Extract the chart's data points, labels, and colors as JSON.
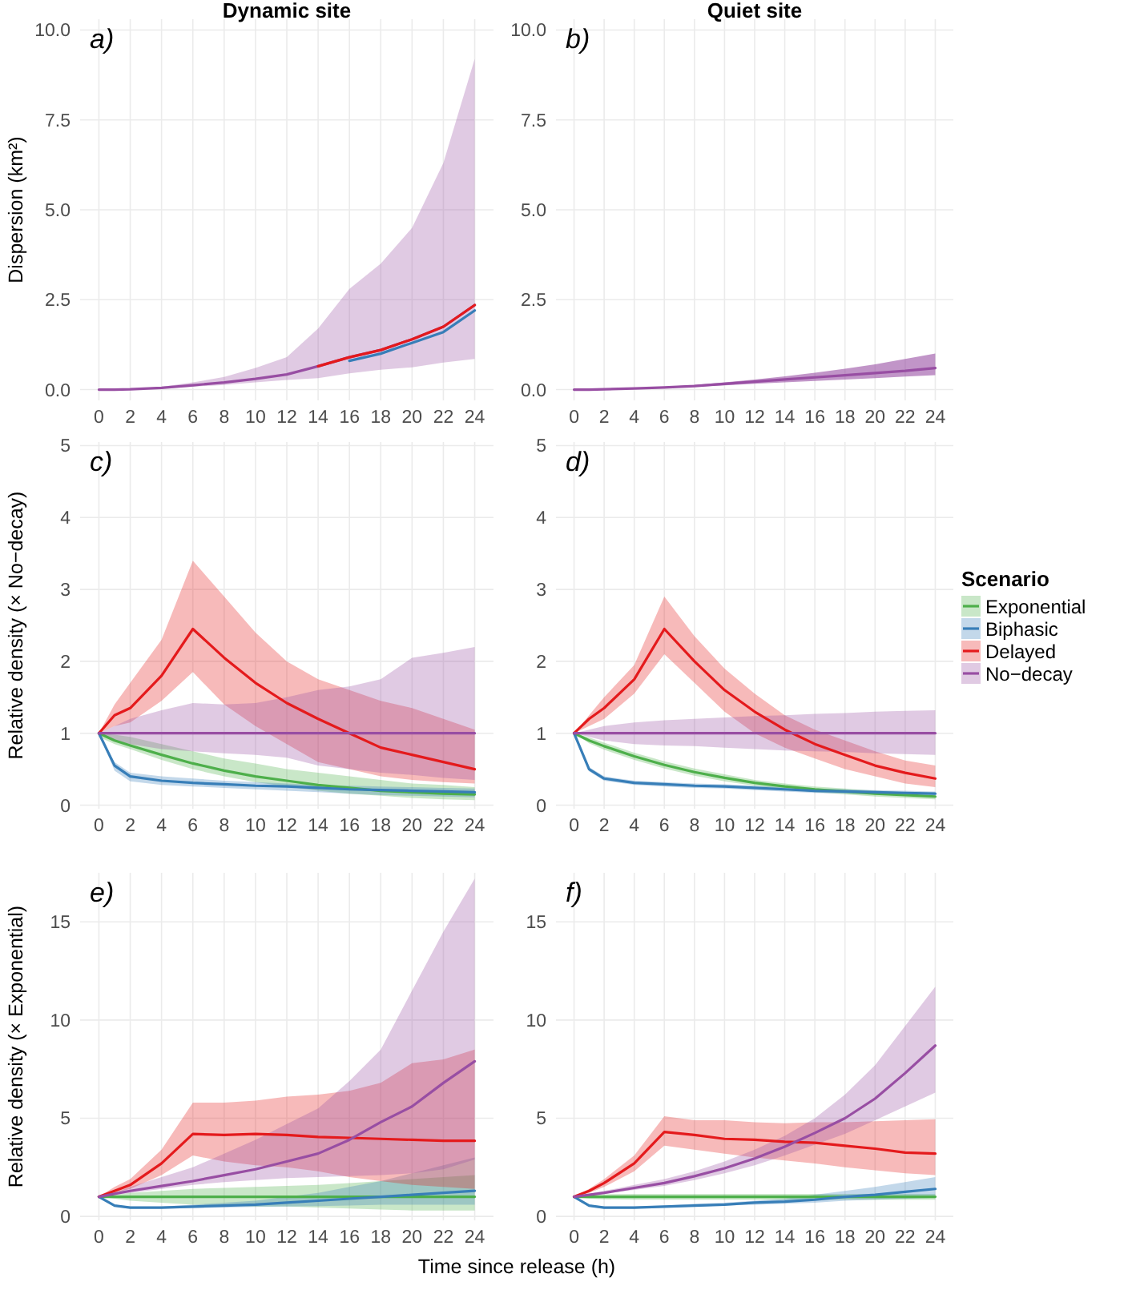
{
  "chart_data": [
    {
      "type": "line",
      "title": "Dynamic site",
      "ylabel": "Dispersion (km²)",
      "annotations": [
        "a)"
      ],
      "grid": true,
      "line_style": "solid",
      "x": [
        0,
        1,
        2,
        4,
        6,
        8,
        10,
        12,
        14,
        16,
        18,
        20,
        22,
        24
      ],
      "xlim": [
        -1.2,
        25.2
      ],
      "xticks": [
        0,
        2,
        4,
        6,
        8,
        10,
        12,
        14,
        16,
        18,
        20,
        22,
        24
      ],
      "ylim": [
        -0.3,
        10.3
      ],
      "yticks": [
        {
          "value": 0,
          "label": "0.0"
        },
        {
          "value": 2.5,
          "label": "2.5"
        },
        {
          "value": 5,
          "label": "5.0"
        },
        {
          "value": 7.5,
          "label": "7.5"
        },
        {
          "value": 10,
          "label": "10.0"
        }
      ],
      "series": [
        {
          "color": "#984ea3",
          "values": [
            0,
            0,
            0.01,
            0.05,
            0.12,
            0.2,
            0.3,
            0.42,
            0.65,
            0.9,
            1.1,
            1.4,
            1.75,
            2.35
          ],
          "lower": [
            0,
            0,
            0.01,
            0.03,
            0.08,
            0.13,
            0.2,
            0.27,
            0.32,
            0.45,
            0.55,
            0.62,
            0.75,
            0.85
          ],
          "upper": [
            0,
            0,
            0.02,
            0.08,
            0.2,
            0.35,
            0.6,
            0.9,
            1.7,
            2.8,
            3.5,
            4.5,
            6.3,
            9.2
          ]
        },
        {
          "color": "#377eb8",
          "values": [
            null,
            null,
            null,
            null,
            null,
            null,
            null,
            null,
            null,
            0.8,
            1.0,
            1.3,
            1.6,
            2.2
          ]
        },
        {
          "color": "#e41a1c",
          "values": [
            null,
            null,
            null,
            null,
            null,
            null,
            null,
            null,
            0.65,
            0.9,
            1.1,
            1.4,
            1.75,
            2.35
          ]
        }
      ]
    },
    {
      "type": "line",
      "title": "Quiet site",
      "annotations": [
        "b)"
      ],
      "grid": true,
      "line_style": "solid",
      "x": [
        0,
        1,
        2,
        4,
        6,
        8,
        10,
        12,
        14,
        16,
        18,
        20,
        22,
        24
      ],
      "xlim": [
        -1.2,
        25.2
      ],
      "xticks": [
        0,
        2,
        4,
        6,
        8,
        10,
        12,
        14,
        16,
        18,
        20,
        22,
        24
      ],
      "ylim": [
        -0.3,
        10.3
      ],
      "yticks": [
        {
          "value": 0,
          "label": "0.0"
        },
        {
          "value": 2.5,
          "label": "2.5"
        },
        {
          "value": 5,
          "label": "5.0"
        },
        {
          "value": 7.5,
          "label": "7.5"
        },
        {
          "value": 10,
          "label": "10.0"
        }
      ],
      "series": [
        {
          "color": "#984ea3",
          "values": [
            0,
            0,
            0.01,
            0.03,
            0.06,
            0.1,
            0.16,
            0.22,
            0.28,
            0.34,
            0.4,
            0.46,
            0.52,
            0.6
          ],
          "lower": [
            0,
            0,
            0.01,
            0.02,
            0.05,
            0.08,
            0.12,
            0.16,
            0.2,
            0.24,
            0.28,
            0.32,
            0.36,
            0.4
          ],
          "upper": [
            0,
            0,
            0.01,
            0.04,
            0.08,
            0.13,
            0.2,
            0.28,
            0.37,
            0.47,
            0.58,
            0.7,
            0.85,
            1.0
          ]
        }
      ]
    },
    {
      "type": "line",
      "ylabel": "Relative density (× No−decay)",
      "annotations": [
        "c)"
      ],
      "grid": true,
      "line_style": "solid",
      "x": [
        0,
        1,
        2,
        4,
        6,
        8,
        10,
        12,
        14,
        16,
        18,
        20,
        22,
        24
      ],
      "xlim": [
        -1.2,
        25.2
      ],
      "xticks": [
        0,
        2,
        4,
        6,
        8,
        10,
        12,
        14,
        16,
        18,
        20,
        22,
        24
      ],
      "ylim": [
        -0.05,
        5.05
      ],
      "yticks": [
        0,
        1,
        2,
        3,
        4,
        5
      ],
      "series": [
        {
          "color": "#4daf4a",
          "values": [
            1,
            0.9,
            0.83,
            0.7,
            0.58,
            0.48,
            0.4,
            0.34,
            0.28,
            0.24,
            0.2,
            0.18,
            0.16,
            0.15
          ],
          "lower": [
            0.95,
            0.85,
            0.78,
            0.63,
            0.5,
            0.4,
            0.32,
            0.26,
            0.2,
            0.16,
            0.13,
            0.1,
            0.08,
            0.07
          ],
          "upper": [
            1,
            0.98,
            0.95,
            0.85,
            0.75,
            0.65,
            0.58,
            0.5,
            0.45,
            0.4,
            0.35,
            0.3,
            0.28,
            0.25
          ]
        },
        {
          "color": "#377eb8",
          "values": [
            1,
            0.55,
            0.4,
            0.34,
            0.31,
            0.29,
            0.27,
            0.26,
            0.24,
            0.22,
            0.21,
            0.2,
            0.19,
            0.18
          ],
          "lower": [
            1,
            0.48,
            0.33,
            0.28,
            0.26,
            0.24,
            0.22,
            0.2,
            0.18,
            0.16,
            0.14,
            0.13,
            0.12,
            0.11
          ],
          "upper": [
            1,
            0.6,
            0.45,
            0.4,
            0.37,
            0.34,
            0.32,
            0.3,
            0.28,
            0.27,
            0.26,
            0.25,
            0.24,
            0.23
          ]
        },
        {
          "color": "#e41a1c",
          "values": [
            1,
            1.25,
            1.35,
            1.8,
            2.45,
            2.05,
            1.7,
            1.42,
            1.2,
            1.0,
            0.8,
            0.7,
            0.6,
            0.5
          ],
          "lower": [
            1,
            1.1,
            1.15,
            1.45,
            1.85,
            1.4,
            1.1,
            0.85,
            0.6,
            0.5,
            0.4,
            0.35,
            0.32,
            0.3
          ],
          "upper": [
            1,
            1.4,
            1.7,
            2.3,
            3.4,
            2.9,
            2.4,
            2.0,
            1.75,
            1.6,
            1.45,
            1.35,
            1.2,
            1.05
          ]
        },
        {
          "color": "#984ea3",
          "values": [
            1,
            1,
            1,
            1,
            1,
            1,
            1,
            1,
            1,
            1,
            1,
            1,
            1,
            1
          ],
          "lower": [
            1,
            0.9,
            0.85,
            0.78,
            0.75,
            0.72,
            0.7,
            0.66,
            0.55,
            0.5,
            0.45,
            0.42,
            0.38,
            0.35
          ],
          "upper": [
            1,
            1.1,
            1.2,
            1.32,
            1.42,
            1.4,
            1.42,
            1.5,
            1.6,
            1.65,
            1.75,
            2.05,
            2.12,
            2.2
          ]
        }
      ]
    },
    {
      "type": "line",
      "annotations": [
        "d)"
      ],
      "legend_title": "Scenario",
      "legend": "right",
      "grid": true,
      "line_style": "solid",
      "x": [
        0,
        1,
        2,
        4,
        6,
        8,
        10,
        12,
        14,
        16,
        18,
        20,
        22,
        24
      ],
      "xlim": [
        -1.2,
        25.2
      ],
      "xticks": [
        0,
        2,
        4,
        6,
        8,
        10,
        12,
        14,
        16,
        18,
        20,
        22,
        24
      ],
      "ylim": [
        -0.05,
        5.05
      ],
      "yticks": [
        0,
        1,
        2,
        3,
        4,
        5
      ],
      "series": [
        {
          "name": "Exponential",
          "color": "#4daf4a",
          "values": [
            1,
            0.9,
            0.82,
            0.68,
            0.56,
            0.46,
            0.38,
            0.31,
            0.26,
            0.22,
            0.19,
            0.16,
            0.14,
            0.12
          ],
          "lower": [
            1,
            0.86,
            0.77,
            0.63,
            0.51,
            0.41,
            0.33,
            0.27,
            0.22,
            0.18,
            0.15,
            0.12,
            0.1,
            0.08
          ],
          "upper": [
            1,
            0.94,
            0.87,
            0.73,
            0.61,
            0.51,
            0.43,
            0.35,
            0.3,
            0.26,
            0.23,
            0.2,
            0.18,
            0.16
          ]
        },
        {
          "name": "Biphasic",
          "color": "#377eb8",
          "values": [
            1,
            0.5,
            0.37,
            0.31,
            0.29,
            0.27,
            0.26,
            0.24,
            0.22,
            0.2,
            0.19,
            0.18,
            0.17,
            0.16
          ],
          "lower": [
            1,
            0.47,
            0.34,
            0.28,
            0.26,
            0.24,
            0.23,
            0.21,
            0.19,
            0.17,
            0.16,
            0.15,
            0.14,
            0.13
          ],
          "upper": [
            1,
            0.53,
            0.4,
            0.34,
            0.32,
            0.3,
            0.29,
            0.27,
            0.25,
            0.23,
            0.22,
            0.21,
            0.2,
            0.19
          ]
        },
        {
          "name": "Delayed",
          "color": "#e41a1c",
          "values": [
            1,
            1.2,
            1.35,
            1.75,
            2.45,
            2.0,
            1.6,
            1.3,
            1.05,
            0.85,
            0.7,
            0.55,
            0.45,
            0.37
          ],
          "lower": [
            1,
            1.1,
            1.2,
            1.55,
            2.1,
            1.7,
            1.3,
            1.0,
            0.8,
            0.65,
            0.5,
            0.4,
            0.3,
            0.25
          ],
          "upper": [
            1,
            1.25,
            1.5,
            1.95,
            2.9,
            2.35,
            1.9,
            1.55,
            1.25,
            1.05,
            0.9,
            0.75,
            0.62,
            0.55
          ]
        },
        {
          "name": "No−decay",
          "color": "#984ea3",
          "values": [
            1,
            1,
            1,
            1,
            1,
            1,
            1,
            1,
            1,
            1,
            1,
            1,
            1,
            1
          ],
          "lower": [
            1,
            0.95,
            0.9,
            0.85,
            0.83,
            0.82,
            0.8,
            0.78,
            0.76,
            0.75,
            0.74,
            0.72,
            0.71,
            0.7
          ],
          "upper": [
            1,
            1.05,
            1.1,
            1.15,
            1.18,
            1.2,
            1.22,
            1.24,
            1.25,
            1.27,
            1.28,
            1.3,
            1.31,
            1.32
          ]
        }
      ]
    },
    {
      "type": "line",
      "ylabel": "Relative density (× Exponential)",
      "xlabel": "Time since release (h)",
      "annotations": [
        "e)"
      ],
      "grid": true,
      "line_style": "solid",
      "x": [
        0,
        1,
        2,
        4,
        6,
        8,
        10,
        12,
        14,
        16,
        18,
        20,
        22,
        24
      ],
      "xlim": [
        -1.2,
        25.2
      ],
      "xticks": [
        0,
        2,
        4,
        6,
        8,
        10,
        12,
        14,
        16,
        18,
        20,
        22,
        24
      ],
      "ylim": [
        -0.2,
        17.5
      ],
      "yticks": [
        0,
        5,
        10,
        15
      ],
      "series": [
        {
          "color": "#4daf4a",
          "values": [
            1,
            1,
            1,
            1,
            1,
            1,
            1,
            1,
            1,
            1,
            1,
            1,
            1,
            1
          ],
          "lower": [
            1,
            0.9,
            0.8,
            0.7,
            0.6,
            0.55,
            0.5,
            0.5,
            0.45,
            0.4,
            0.35,
            0.3,
            0.3,
            0.3
          ],
          "upper": [
            1,
            1.1,
            1.2,
            1.3,
            1.4,
            1.45,
            1.5,
            1.55,
            1.6,
            1.7,
            1.8,
            1.9,
            2,
            2.1
          ]
        },
        {
          "color": "#377eb8",
          "values": [
            1,
            0.55,
            0.45,
            0.45,
            0.5,
            0.55,
            0.6,
            0.7,
            0.8,
            0.9,
            1.0,
            1.1,
            1.2,
            1.3
          ],
          "lower": [
            1,
            0.5,
            0.4,
            0.4,
            0.42,
            0.45,
            0.48,
            0.5,
            0.52,
            0.55,
            0.6,
            0.6,
            0.6,
            0.6
          ],
          "upper": [
            1,
            0.6,
            0.5,
            0.5,
            0.6,
            0.7,
            0.8,
            1.0,
            1.2,
            1.5,
            1.8,
            2.2,
            2.6,
            3.0
          ]
        },
        {
          "color": "#e41a1c",
          "values": [
            1,
            1.3,
            1.6,
            2.7,
            4.2,
            4.15,
            4.2,
            4.15,
            4.05,
            4.0,
            3.95,
            3.9,
            3.85,
            3.85
          ],
          "lower": [
            1,
            1.2,
            1.4,
            2.1,
            3.1,
            2.8,
            2.6,
            2.5,
            2.3,
            2.0,
            1.8,
            1.6,
            1.5,
            1.4
          ],
          "upper": [
            1,
            1.5,
            1.9,
            3.4,
            5.8,
            5.8,
            5.9,
            6.1,
            6.2,
            6.4,
            6.8,
            7.8,
            8.0,
            8.5
          ]
        },
        {
          "color": "#984ea3",
          "values": [
            1,
            1.15,
            1.3,
            1.55,
            1.8,
            2.1,
            2.4,
            2.8,
            3.2,
            3.9,
            4.8,
            5.6,
            6.8,
            7.9
          ],
          "lower": [
            1,
            1.1,
            1.2,
            1.4,
            1.6,
            1.75,
            1.85,
            1.95,
            2.0,
            2.05,
            2.1,
            2.2,
            2.4,
            2.9
          ],
          "upper": [
            1,
            1.2,
            1.5,
            2.0,
            2.5,
            3.2,
            3.9,
            4.7,
            5.5,
            6.9,
            8.5,
            11.5,
            14.5,
            17.2
          ]
        }
      ]
    },
    {
      "type": "line",
      "annotations": [
        "f)"
      ],
      "grid": true,
      "line_style": "solid",
      "x": [
        0,
        1,
        2,
        4,
        6,
        8,
        10,
        12,
        14,
        16,
        18,
        20,
        22,
        24
      ],
      "xlim": [
        -1.2,
        25.2
      ],
      "xticks": [
        0,
        2,
        4,
        6,
        8,
        10,
        12,
        14,
        16,
        18,
        20,
        22,
        24
      ],
      "ylim": [
        -0.2,
        17.5
      ],
      "yticks": [
        0,
        5,
        10,
        15
      ],
      "series": [
        {
          "color": "#4daf4a",
          "values": [
            1,
            1,
            1,
            1,
            1,
            1,
            1,
            1,
            1,
            1,
            1,
            1,
            1,
            1
          ],
          "lower": [
            1,
            0.9,
            0.87,
            0.85,
            0.85,
            0.85,
            0.85,
            0.85,
            0.85,
            0.85,
            0.85,
            0.85,
            0.85,
            0.85
          ],
          "upper": [
            1,
            1.1,
            1.13,
            1.15,
            1.15,
            1.15,
            1.15,
            1.15,
            1.15,
            1.15,
            1.15,
            1.15,
            1.15,
            1.15
          ]
        },
        {
          "color": "#377eb8",
          "values": [
            1,
            0.55,
            0.45,
            0.45,
            0.5,
            0.55,
            0.6,
            0.7,
            0.75,
            0.85,
            1.0,
            1.1,
            1.25,
            1.4
          ],
          "lower": [
            1,
            0.5,
            0.4,
            0.4,
            0.45,
            0.5,
            0.55,
            0.6,
            0.65,
            0.7,
            0.8,
            0.85,
            0.9,
            0.95
          ],
          "upper": [
            1,
            0.6,
            0.5,
            0.5,
            0.55,
            0.65,
            0.7,
            0.8,
            0.9,
            1.1,
            1.3,
            1.5,
            1.75,
            2.0
          ]
        },
        {
          "color": "#e41a1c",
          "values": [
            1,
            1.3,
            1.7,
            2.7,
            4.3,
            4.15,
            3.95,
            3.9,
            3.8,
            3.75,
            3.6,
            3.45,
            3.25,
            3.2
          ],
          "lower": [
            1,
            1.2,
            1.5,
            2.3,
            3.6,
            3.4,
            3.2,
            3.0,
            2.85,
            2.7,
            2.5,
            2.35,
            2.2,
            2.1
          ],
          "upper": [
            1,
            1.4,
            1.9,
            3.1,
            5.1,
            4.9,
            4.9,
            4.8,
            4.75,
            4.8,
            4.8,
            4.85,
            4.9,
            4.95
          ]
        },
        {
          "color": "#984ea3",
          "values": [
            1,
            1.1,
            1.2,
            1.45,
            1.7,
            2.05,
            2.45,
            2.95,
            3.55,
            4.25,
            5.0,
            6.0,
            7.3,
            8.7
          ],
          "lower": [
            1,
            1.05,
            1.15,
            1.35,
            1.55,
            1.85,
            2.2,
            2.6,
            3.1,
            3.65,
            4.2,
            4.9,
            5.6,
            6.3
          ],
          "upper": [
            1,
            1.15,
            1.3,
            1.6,
            1.9,
            2.3,
            2.8,
            3.4,
            4.1,
            5.0,
            6.2,
            7.7,
            9.7,
            11.7
          ]
        }
      ]
    }
  ]
}
